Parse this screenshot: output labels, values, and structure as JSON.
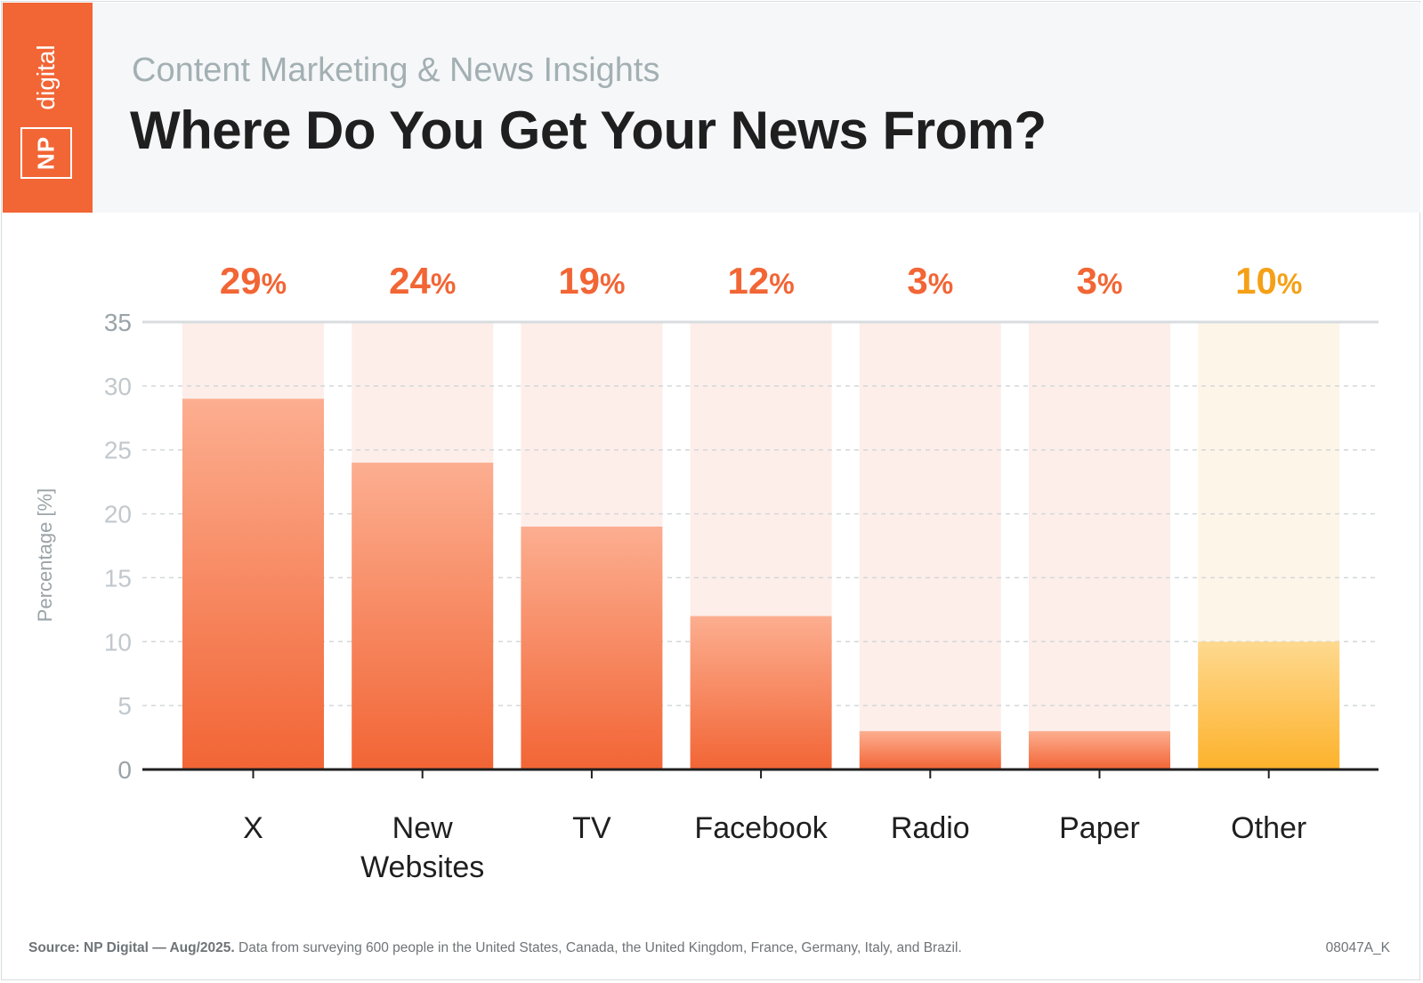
{
  "header": {
    "logo_np": "NP",
    "logo_digital": "digital",
    "subtitle": "Content Marketing & News Insights",
    "title": "Where Do You Get Your News From?"
  },
  "colors": {
    "brand_orange": "#f26535",
    "bar_top": "#fcae90",
    "bar_bottom": "#f26535",
    "bar_track": "#fdeeea",
    "other_top": "#fed98f",
    "other_bottom": "#fdb22b",
    "other_track": "#fdf6e8",
    "other_label": "#f5a016"
  },
  "chart_data": {
    "type": "bar",
    "title": "Where Do You Get Your News From?",
    "ylabel": "Percentage [%]",
    "ylim": [
      0,
      35
    ],
    "yticks": [
      0,
      5,
      10,
      15,
      20,
      25,
      30,
      35
    ],
    "grid": true,
    "categories": [
      [
        "X"
      ],
      [
        "New",
        "Websites"
      ],
      [
        "TV"
      ],
      [
        "Facebook"
      ],
      [
        "Radio"
      ],
      [
        "Paper"
      ],
      [
        "Other"
      ]
    ],
    "values": [
      29,
      24,
      19,
      12,
      3,
      3,
      10
    ],
    "value_labels": [
      "29%",
      "24%",
      "19%",
      "12%",
      "3%",
      "3%",
      "10%"
    ],
    "highlight_category": "Other"
  },
  "footer": {
    "source_bold": "Source: NP Digital — Aug/2025.",
    "source_text": " Data from surveying 600 people in the United States, Canada, the United Kingdom, France, Germany, Italy, and Brazil.",
    "code": "08047A_K"
  }
}
